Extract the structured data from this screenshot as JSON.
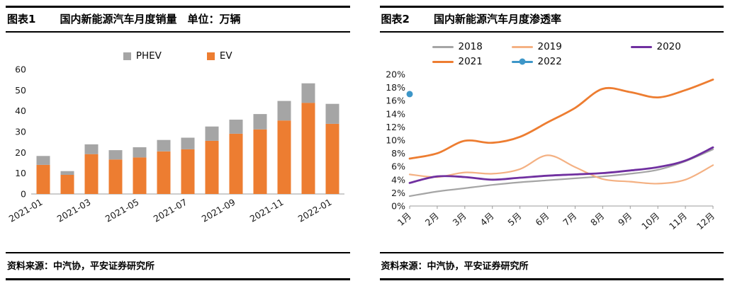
{
  "panels": [
    {
      "tag": "图表1",
      "title": "国内新能源汽车月度销量　单位：万辆",
      "source": "资料来源：中汽协，平安证券研究所"
    },
    {
      "tag": "图表2",
      "title": "国内新能源汽车月度渗透率",
      "source": "资料来源：中汽协，平安证券研究所"
    }
  ],
  "colors": {
    "ev_orange": "#ED7D31",
    "phev_gray": "#A5A5A5",
    "peach_2019": "#F4B183",
    "purple_2020": "#7030A0",
    "blue_2022": "#3D96C8",
    "axis_line": "#9B9B9B",
    "rule_black": "#000000"
  },
  "chart_data": [
    {
      "type": "bar",
      "stacked": true,
      "title": "国内新能源汽车月度销量",
      "unit_label": "万辆",
      "categories": [
        "2021-01",
        "2021-02",
        "2021-03",
        "2021-04",
        "2021-05",
        "2021-06",
        "2021-07",
        "2021-08",
        "2021-09",
        "2021-10",
        "2021-11",
        "2021-12",
        "2022-01"
      ],
      "series": [
        {
          "name": "EV",
          "color": "#ED7D31",
          "values": [
            14.0,
            9.2,
            19.2,
            16.6,
            17.6,
            20.5,
            21.5,
            25.6,
            29.0,
            31.1,
            35.4,
            43.9,
            33.8
          ]
        },
        {
          "name": "PHEV",
          "color": "#A5A5A5",
          "values": [
            4.3,
            1.8,
            4.7,
            4.5,
            4.9,
            5.5,
            5.6,
            6.9,
            6.8,
            7.4,
            9.4,
            9.4,
            9.6
          ]
        }
      ],
      "legend_order": [
        "PHEV",
        "EV"
      ],
      "ylim": [
        0,
        60
      ],
      "ytick_step": 10,
      "xtick_every": 2,
      "legend_position": "top",
      "grid": false
    },
    {
      "type": "line",
      "title": "国内新能源汽车月度渗透率",
      "categories": [
        "1月",
        "2月",
        "3月",
        "4月",
        "5月",
        "6月",
        "7月",
        "8月",
        "9月",
        "10月",
        "11月",
        "12月"
      ],
      "series": [
        {
          "name": "2018",
          "color": "#A5A5A5",
          "width": 2.2,
          "values": [
            1.5,
            2.2,
            2.7,
            3.2,
            3.6,
            3.9,
            4.2,
            4.5,
            4.9,
            5.5,
            6.8,
            8.6
          ]
        },
        {
          "name": "2019",
          "color": "#F4B183",
          "width": 2.2,
          "values": [
            4.8,
            4.4,
            5.1,
            4.9,
            5.6,
            7.7,
            5.9,
            4.1,
            3.7,
            3.4,
            4.0,
            6.2
          ]
        },
        {
          "name": "2020",
          "color": "#7030A0",
          "width": 2.8,
          "values": [
            3.5,
            4.5,
            4.4,
            4.0,
            4.3,
            4.6,
            4.8,
            5.0,
            5.4,
            5.9,
            6.9,
            8.9
          ]
        },
        {
          "name": "2021",
          "color": "#ED7D31",
          "width": 2.8,
          "values": [
            7.2,
            8.0,
            9.9,
            9.6,
            10.5,
            12.7,
            14.9,
            17.8,
            17.3,
            16.5,
            17.6,
            19.2
          ]
        },
        {
          "name": "2022",
          "color": "#3D96C8",
          "width": 2.5,
          "marker": "circle",
          "values": [
            17.0,
            null,
            null,
            null,
            null,
            null,
            null,
            null,
            null,
            null,
            null,
            null
          ]
        }
      ],
      "legend_order": [
        "2018",
        "2019",
        "2020",
        "2021",
        "2022"
      ],
      "ylim": [
        0,
        20
      ],
      "ytick_step": 2,
      "ytick_suffix": "%",
      "legend_position": "top",
      "grid": false
    }
  ]
}
